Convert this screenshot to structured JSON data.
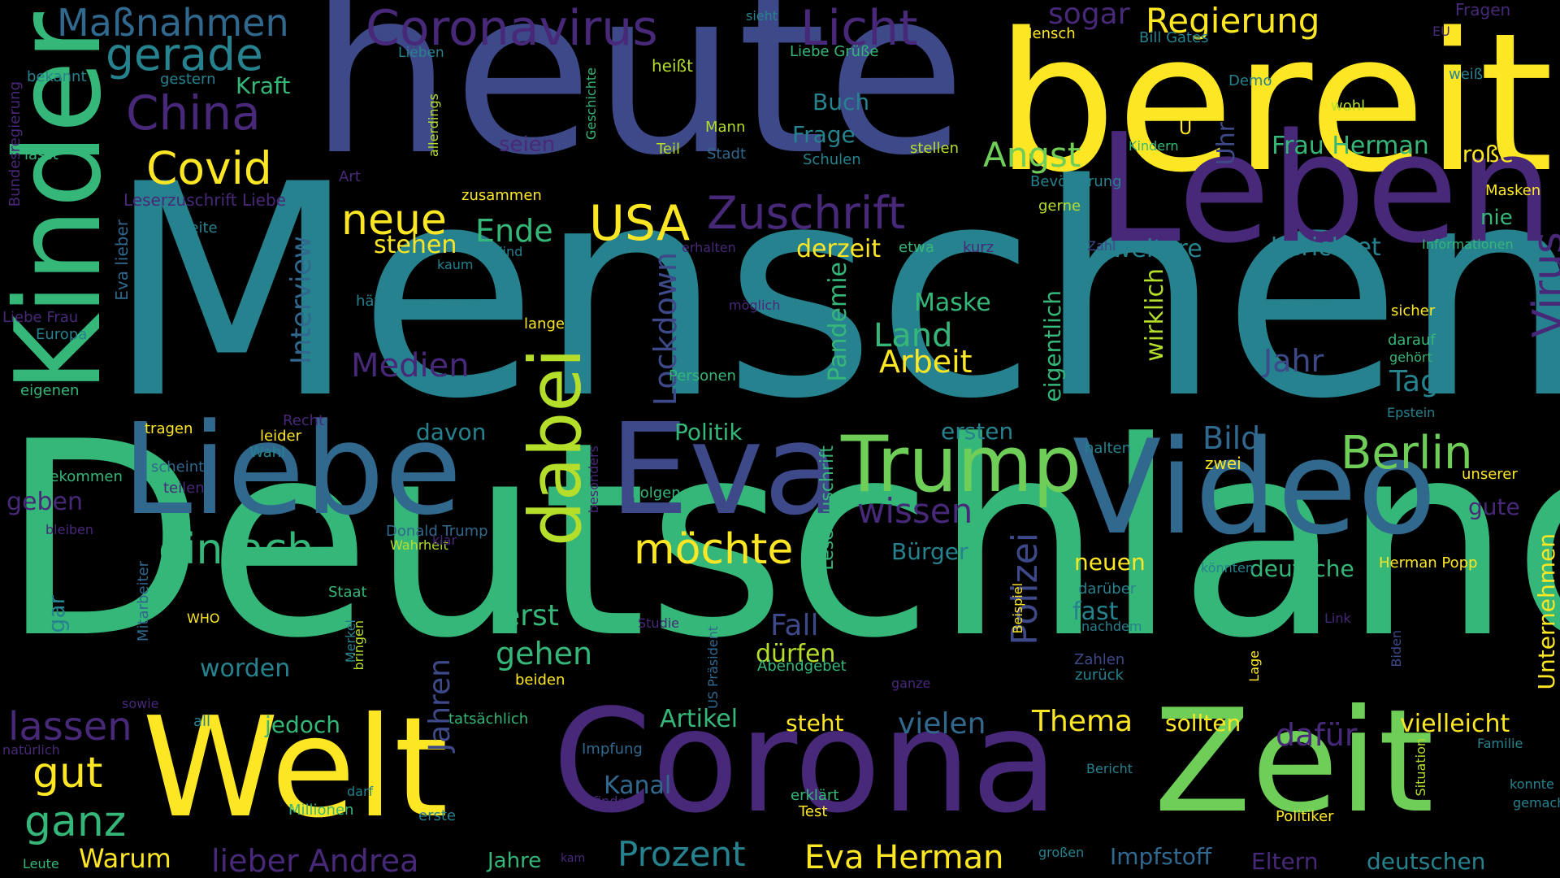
{
  "palette": {
    "yellow": "#fde725",
    "lime": "#b5de2b",
    "green": "#6ece58",
    "teal_green": "#35b779",
    "teal": "#1f9e89",
    "cyan": "#26828e",
    "blue": "#31688e",
    "indigo": "#3e4989",
    "purple": "#482878",
    "dark_purple": "#440154",
    "background": "#000000"
  },
  "words": [
    {
      "text": "Menschen",
      "color": "#26828e",
      "weight": 1.0
    },
    {
      "text": "Deutschland",
      "color": "#35b779",
      "weight": 0.92
    },
    {
      "text": "heute",
      "color": "#3e4989",
      "weight": 0.78
    },
    {
      "text": "bereit",
      "color": "#fde725",
      "weight": 0.66
    },
    {
      "text": "Leben",
      "color": "#482878",
      "weight": 0.52
    },
    {
      "text": "Corona",
      "color": "#482878",
      "weight": 0.5
    },
    {
      "text": "Zeit",
      "color": "#6ece58",
      "weight": 0.5
    },
    {
      "text": "Welt",
      "color": "#fde725",
      "weight": 0.48
    },
    {
      "text": "Video",
      "color": "#31688e",
      "weight": 0.46
    },
    {
      "text": "Liebe",
      "color": "#31688e",
      "weight": 0.42
    },
    {
      "text": "Eva",
      "color": "#3e4989",
      "weight": 0.42
    },
    {
      "text": "Kinder",
      "color": "#35b779",
      "weight": 0.4
    },
    {
      "text": "Trump",
      "color": "#6ece58",
      "weight": 0.26
    },
    {
      "text": "dabei",
      "color": "#b5de2b",
      "weight": 0.25
    },
    {
      "text": "Coronavirus",
      "color": "#482878",
      "weight": 0.17
    },
    {
      "text": "Licht",
      "color": "#482878",
      "weight": 0.17
    },
    {
      "text": "Maßnahmen",
      "color": "#31688e",
      "weight": 0.13
    },
    {
      "text": "gerade",
      "color": "#26828e",
      "weight": 0.16
    },
    {
      "text": "China",
      "color": "#482878",
      "weight": 0.16
    },
    {
      "text": "Covid",
      "color": "#fde725",
      "weight": 0.15
    },
    {
      "text": "neue",
      "color": "#fde725",
      "weight": 0.14
    },
    {
      "text": "USA",
      "color": "#fde725",
      "weight": 0.15
    },
    {
      "text": "Zuschrift",
      "color": "#482878",
      "weight": 0.15
    },
    {
      "text": "Angst",
      "color": "#6ece58",
      "weight": 0.12
    },
    {
      "text": "Regierung",
      "color": "#fde725",
      "weight": 0.12
    },
    {
      "text": "sogar",
      "color": "#482878",
      "weight": 0.1
    },
    {
      "text": "Virus",
      "color": "#482878",
      "weight": 0.14
    },
    {
      "text": "Berlin",
      "color": "#6ece58",
      "weight": 0.15
    },
    {
      "text": "einfach",
      "color": "#35b779",
      "weight": 0.14
    },
    {
      "text": "möchte",
      "color": "#fde725",
      "weight": 0.14
    },
    {
      "text": "wissen",
      "color": "#482878",
      "weight": 0.11
    },
    {
      "text": "Polizei",
      "color": "#3e4989",
      "weight": 0.12
    },
    {
      "text": "lassen",
      "color": "#482878",
      "weight": 0.13
    },
    {
      "text": "gut",
      "color": "#fde725",
      "weight": 0.14
    },
    {
      "text": "ganz",
      "color": "#35b779",
      "weight": 0.14
    },
    {
      "text": "Prozent",
      "color": "#26828e",
      "weight": 0.12
    },
    {
      "text": "Eva Herman",
      "color": "#fde725",
      "weight": 0.12
    },
    {
      "text": "lieber Andrea",
      "color": "#482878",
      "weight": 0.11
    },
    {
      "text": "Ende",
      "color": "#35b779",
      "weight": 0.1
    },
    {
      "text": "Land",
      "color": "#35b779",
      "weight": 0.11
    },
    {
      "text": "Arbeit",
      "color": "#fde725",
      "weight": 0.11
    },
    {
      "text": "Jahr",
      "color": "#3e4989",
      "weight": 0.11
    },
    {
      "text": "Tag",
      "color": "#26828e",
      "weight": 0.1
    },
    {
      "text": "Bild",
      "color": "#31688e",
      "weight": 0.11
    },
    {
      "text": "Medien",
      "color": "#482878",
      "weight": 0.11
    },
    {
      "text": "Lockdown",
      "color": "#3e4989",
      "weight": 0.11
    },
    {
      "text": "Interview",
      "color": "#31688e",
      "weight": 0.1
    },
    {
      "text": "Jahren",
      "color": "#3e4989",
      "weight": 0.11
    },
    {
      "text": "Thema",
      "color": "#fde725",
      "weight": 0.1
    },
    {
      "text": "vielen",
      "color": "#31688e",
      "weight": 0.1
    },
    {
      "text": "dafür",
      "color": "#482878",
      "weight": 0.1
    },
    {
      "text": "gehen",
      "color": "#35b779",
      "weight": 0.1
    },
    {
      "text": "erst",
      "color": "#35b779",
      "weight": 0.1
    },
    {
      "text": "Fall",
      "color": "#3e4989",
      "weight": 0.1
    },
    {
      "text": "stehen",
      "color": "#fde725",
      "weight": 0.08
    },
    {
      "text": "Buch",
      "color": "#26828e",
      "weight": 0.08
    },
    {
      "text": "Frage",
      "color": "#26828e",
      "weight": 0.08
    },
    {
      "text": "Kraft",
      "color": "#35b779",
      "weight": 0.08
    },
    {
      "text": "Uhr",
      "color": "#3e4989",
      "weight": 0.09
    },
    {
      "text": "Frau Herman",
      "color": "#35b779",
      "weight": 0.08
    },
    {
      "text": "große",
      "color": "#fde725",
      "weight": 0.08
    },
    {
      "text": "Maske",
      "color": "#35b779",
      "weight": 0.08
    },
    {
      "text": "Pandemie",
      "color": "#35b779",
      "weight": 0.08
    },
    {
      "text": "derzeit",
      "color": "#fde725",
      "weight": 0.08
    },
    {
      "text": "weitere",
      "color": "#26828e",
      "weight": 0.08
    },
    {
      "text": "berichtet",
      "color": "#26828e",
      "weight": 0.08
    },
    {
      "text": "wirklich",
      "color": "#b5de2b",
      "weight": 0.08
    },
    {
      "text": "eigentlich",
      "color": "#35b779",
      "weight": 0.07
    },
    {
      "text": "Politik",
      "color": "#35b779",
      "weight": 0.07
    },
    {
      "text": "davon",
      "color": "#26828e",
      "weight": 0.07
    },
    {
      "text": "ersten",
      "color": "#26828e",
      "weight": 0.07
    },
    {
      "text": "Bürger",
      "color": "#26828e",
      "weight": 0.07
    },
    {
      "text": "neuen",
      "color": "#fde725",
      "weight": 0.07
    },
    {
      "text": "deutsche",
      "color": "#35b779",
      "weight": 0.07
    },
    {
      "text": "fast",
      "color": "#26828e",
      "weight": 0.07
    },
    {
      "text": "dürfen",
      "color": "#b5de2b",
      "weight": 0.07
    },
    {
      "text": "worden",
      "color": "#26828e",
      "weight": 0.08
    },
    {
      "text": "jedoch",
      "color": "#35b779",
      "weight": 0.07
    },
    {
      "text": "Artikel",
      "color": "#35b779",
      "weight": 0.08
    },
    {
      "text": "steht",
      "color": "#fde725",
      "weight": 0.07
    },
    {
      "text": "sollten",
      "color": "#fde725",
      "weight": 0.07
    },
    {
      "text": "vielleicht",
      "color": "#fde725",
      "weight": 0.07
    },
    {
      "text": "Unternehmen",
      "color": "#fde725",
      "weight": 0.07
    },
    {
      "text": "gute",
      "color": "#482878",
      "weight": 0.07
    },
    {
      "text": "nie",
      "color": "#35b779",
      "weight": 0.06
    },
    {
      "text": "geben",
      "color": "#482878",
      "weight": 0.08
    },
    {
      "text": "Warum",
      "color": "#fde725",
      "weight": 0.08
    },
    {
      "text": "Kanal",
      "color": "#31688e",
      "weight": 0.07
    },
    {
      "text": "Eltern",
      "color": "#482878",
      "weight": 0.07
    },
    {
      "text": "deutschen",
      "color": "#26828e",
      "weight": 0.07
    },
    {
      "text": "Impfstoff",
      "color": "#31688e",
      "weight": 0.07
    },
    {
      "text": "Jahre",
      "color": "#35b779",
      "weight": 0.06
    },
    {
      "text": "gar",
      "color": "#26828e",
      "weight": 0.06
    },
    {
      "text": "seien",
      "color": "#482878",
      "weight": 0.06
    },
    {
      "text": "Leserzuschrift",
      "color": "#35b779",
      "weight": 0.05
    },
    {
      "text": "Eva lieber",
      "color": "#31688e",
      "weight": 0.05
    },
    {
      "text": "Bundesregierung",
      "color": "#482878",
      "weight": 0.04
    },
    {
      "text": "Leserzuschrift Liebe",
      "color": "#482878",
      "weight": 0.045
    },
    {
      "text": "Mitarbeiter",
      "color": "#31688e",
      "weight": 0.04
    },
    {
      "text": "Fragen",
      "color": "#482878",
      "weight": 0.045
    },
    {
      "text": "Mensch",
      "color": "#fde725",
      "weight": 0.04
    },
    {
      "text": "Bill Gates",
      "color": "#26828e",
      "weight": 0.04
    },
    {
      "text": "EU",
      "color": "#482878",
      "weight": 0.035
    },
    {
      "text": "weiß",
      "color": "#26828e",
      "weight": 0.04
    },
    {
      "text": "sieht",
      "color": "#26828e",
      "weight": 0.04
    },
    {
      "text": "Lieben",
      "color": "#26828e",
      "weight": 0.04
    },
    {
      "text": "Liebe Grüße",
      "color": "#35b779",
      "weight": 0.04
    },
    {
      "text": "heißt",
      "color": "#b5de2b",
      "weight": 0.045
    },
    {
      "text": "Demo",
      "color": "#26828e",
      "weight": 0.04
    },
    {
      "text": "wohl",
      "color": "#b5de2b",
      "weight": 0.04
    },
    {
      "text": "gestern",
      "color": "#26828e",
      "weight": 0.04
    },
    {
      "text": "bekannt",
      "color": "#26828e",
      "weight": 0.04
    },
    {
      "text": "Mann",
      "color": "#b5de2b",
      "weight": 0.04
    },
    {
      "text": "Teil",
      "color": "#b5de2b",
      "weight": 0.04
    },
    {
      "text": "Stadt",
      "color": "#31688e",
      "weight": 0.04
    },
    {
      "text": "Schulen",
      "color": "#26828e",
      "weight": 0.04
    },
    {
      "text": "stellen",
      "color": "#b5de2b",
      "weight": 0.04
    },
    {
      "text": "Kindern",
      "color": "#35b779",
      "weight": 0.04
    },
    {
      "text": "Geschichte",
      "color": "#35b779",
      "weight": 0.035
    },
    {
      "text": "allerdings",
      "color": "#b5de2b",
      "weight": 0.035
    },
    {
      "text": "lässt",
      "color": "#35b779",
      "weight": 0.04
    },
    {
      "text": "Art",
      "color": "#482878",
      "weight": 0.04
    },
    {
      "text": "zusammen",
      "color": "#fde725",
      "weight": 0.04
    },
    {
      "text": "Bevölkerung",
      "color": "#26828e",
      "weight": 0.04
    },
    {
      "text": "gerne",
      "color": "#b5de2b",
      "weight": 0.04
    },
    {
      "text": "Masken",
      "color": "#fde725",
      "weight": 0.04
    },
    {
      "text": "Seite",
      "color": "#26828e",
      "weight": 0.04
    },
    {
      "text": "erhalten",
      "color": "#482878",
      "weight": 0.04
    },
    {
      "text": "etwa",
      "color": "#35b779",
      "weight": 0.04
    },
    {
      "text": "kurz",
      "color": "#482878",
      "weight": 0.04
    },
    {
      "text": "Zahl",
      "color": "#3e4989",
      "weight": 0.04
    },
    {
      "text": "Informationen",
      "color": "#35b779",
      "weight": 0.04
    },
    {
      "text": "Kind",
      "color": "#26828e",
      "weight": 0.04
    },
    {
      "text": "kaum",
      "color": "#26828e",
      "weight": 0.035
    },
    {
      "text": "hätte",
      "color": "#26828e",
      "weight": 0.04
    },
    {
      "text": "möglich",
      "color": "#482878",
      "weight": 0.04
    },
    {
      "text": "sicher",
      "color": "#fde725",
      "weight": 0.04
    },
    {
      "text": "Liebe Frau",
      "color": "#482878",
      "weight": 0.04
    },
    {
      "text": "Europa",
      "color": "#26828e",
      "weight": 0.04
    },
    {
      "text": "lange",
      "color": "#fde725",
      "weight": 0.04
    },
    {
      "text": "darauf",
      "color": "#35b779",
      "weight": 0.04
    },
    {
      "text": "gehört",
      "color": "#35b779",
      "weight": 0.035
    },
    {
      "text": "eigenen",
      "color": "#35b779",
      "weight": 0.04
    },
    {
      "text": "Personen",
      "color": "#35b779",
      "weight": 0.04
    },
    {
      "text": "Recht",
      "color": "#482878",
      "weight": 0.04
    },
    {
      "text": "Epstein",
      "color": "#26828e",
      "weight": 0.035
    },
    {
      "text": "tragen",
      "color": "#fde725",
      "weight": 0.04
    },
    {
      "text": "leider",
      "color": "#fde725",
      "weight": 0.04
    },
    {
      "text": "Wahl",
      "color": "#26828e",
      "weight": 0.04
    },
    {
      "text": "halten",
      "color": "#26828e",
      "weight": 0.04
    },
    {
      "text": "scheint",
      "color": "#31688e",
      "weight": 0.04
    },
    {
      "text": "teilen",
      "color": "#482878",
      "weight": 0.04
    },
    {
      "text": "bekommen",
      "color": "#35b779",
      "weight": 0.04
    },
    {
      "text": "zwei",
      "color": "#fde725",
      "weight": 0.04
    },
    {
      "text": "besonders",
      "color": "#482878",
      "weight": 0.035
    },
    {
      "text": "Folgen",
      "color": "#35b779",
      "weight": 0.04
    },
    {
      "text": "unserer",
      "color": "#fde725",
      "weight": 0.04
    },
    {
      "text": "bleiben",
      "color": "#482878",
      "weight": 0.035
    },
    {
      "text": "Donald Trump",
      "color": "#31688e",
      "weight": 0.04
    },
    {
      "text": "Wahrheit",
      "color": "#b5de2b",
      "weight": 0.04
    },
    {
      "text": "klar",
      "color": "#482878",
      "weight": 0.04
    },
    {
      "text": "darüber",
      "color": "#26828e",
      "weight": 0.04
    },
    {
      "text": "könnten",
      "color": "#26828e",
      "weight": 0.035
    },
    {
      "text": "Herman Popp",
      "color": "#fde725",
      "weight": 0.04
    },
    {
      "text": "Staat",
      "color": "#35b779",
      "weight": 0.04
    },
    {
      "text": "WHO",
      "color": "#fde725",
      "weight": 0.035
    },
    {
      "text": "Studie",
      "color": "#482878",
      "weight": 0.035
    },
    {
      "text": "US Präsident",
      "color": "#31688e",
      "weight": 0.035
    },
    {
      "text": "Beispiel",
      "color": "#fde725",
      "weight": 0.035
    },
    {
      "text": "nachdem",
      "color": "#26828e",
      "weight": 0.035
    },
    {
      "text": "Link",
      "color": "#482878",
      "weight": 0.035
    },
    {
      "text": "Merkel",
      "color": "#26828e",
      "weight": 0.035
    },
    {
      "text": "bringen",
      "color": "#b5de2b",
      "weight": 0.035
    },
    {
      "text": "Abendgebet",
      "color": "#35b779",
      "weight": 0.04
    },
    {
      "text": "Zahlen",
      "color": "#3e4989",
      "weight": 0.04
    },
    {
      "text": "zurück",
      "color": "#26828e",
      "weight": 0.04
    },
    {
      "text": "Lage",
      "color": "#fde725",
      "weight": 0.035
    },
    {
      "text": "Biden",
      "color": "#3e4989",
      "weight": 0.035
    },
    {
      "text": "beiden",
      "color": "#fde725",
      "weight": 0.035
    },
    {
      "text": "ganze",
      "color": "#482878",
      "weight": 0.035
    },
    {
      "text": "sowie",
      "color": "#482878",
      "weight": 0.035
    },
    {
      "text": "all",
      "color": "#26828e",
      "weight": 0.035
    },
    {
      "text": "tatsächlich",
      "color": "#35b779",
      "weight": 0.035
    },
    {
      "text": "natürlich",
      "color": "#482878",
      "weight": 0.035
    },
    {
      "text": "Impfung",
      "color": "#31688e",
      "weight": 0.035
    },
    {
      "text": "Familie",
      "color": "#26828e",
      "weight": 0.035
    },
    {
      "text": "darf",
      "color": "#26828e",
      "weight": 0.035
    },
    {
      "text": "Bericht",
      "color": "#26828e",
      "weight": 0.035
    },
    {
      "text": "konnte",
      "color": "#26828e",
      "weight": 0.035
    },
    {
      "text": "gemacht",
      "color": "#26828e",
      "weight": 0.035
    },
    {
      "text": "Millionen",
      "color": "#35b779",
      "weight": 0.04
    },
    {
      "text": "finden",
      "color": "#482878",
      "weight": 0.035
    },
    {
      "text": "erklärt",
      "color": "#35b779",
      "weight": 0.035
    },
    {
      "text": "Test",
      "color": "#fde725",
      "weight": 0.035
    },
    {
      "text": "Situation",
      "color": "#b5de2b",
      "weight": 0.035
    },
    {
      "text": "Politiker",
      "color": "#fde725",
      "weight": 0.035
    },
    {
      "text": "erste",
      "color": "#26828e",
      "weight": 0.035
    },
    {
      "text": "Leute",
      "color": "#35b779",
      "weight": 0.035
    },
    {
      "text": "kam",
      "color": "#482878",
      "weight": 0.03
    },
    {
      "text": "großen",
      "color": "#26828e",
      "weight": 0.035
    },
    {
      "text": "U",
      "color": "#fde725",
      "weight": 0.04
    }
  ]
}
